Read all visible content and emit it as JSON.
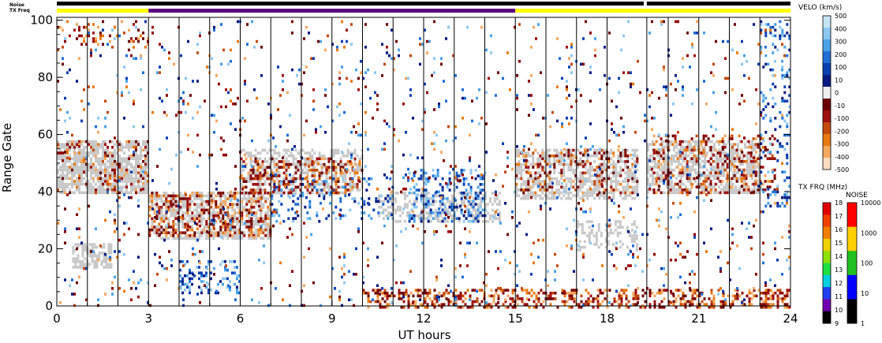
{
  "chart_data": {
    "type": "heatmap",
    "title": "",
    "xlabel": "UT hours",
    "ylabel": "Range Gate",
    "xlim": [
      0,
      24
    ],
    "ylim": [
      0,
      101
    ],
    "x_ticks": [
      0,
      3,
      6,
      9,
      12,
      15,
      18,
      21,
      24
    ],
    "y_ticks": [
      0,
      20,
      40,
      60,
      80,
      100
    ],
    "grid": "vertical lines at scan boundaries",
    "vertical_lines": [
      1,
      2,
      3,
      4,
      5,
      6,
      7,
      8,
      9,
      10,
      11,
      12,
      13,
      14,
      15,
      16,
      17,
      18,
      19.3,
      20,
      21,
      22,
      23
    ],
    "status_bars": {
      "noise_label": "Noise",
      "txfreq_label": "TX Freq",
      "noise_segments": [
        {
          "start": 0,
          "end": 19.2,
          "level": "black"
        },
        {
          "start": 19.3,
          "end": 24,
          "level": "black"
        }
      ],
      "txfreq_segments": [
        {
          "start": 0,
          "end": 3,
          "band": "yellow"
        },
        {
          "start": 3,
          "end": 15,
          "band": "purple"
        },
        {
          "start": 15,
          "end": 24,
          "band": "yellow"
        }
      ]
    },
    "regions": [
      {
        "kind": "ground",
        "x0": 0,
        "x1": 3,
        "y0": 40,
        "y1": 58,
        "density": 0.75
      },
      {
        "kind": "ground",
        "x0": 0.5,
        "x1": 1.8,
        "y0": 14,
        "y1": 22,
        "density": 0.6
      },
      {
        "kind": "ground",
        "x0": 3,
        "x1": 7,
        "y0": 24,
        "y1": 40,
        "density": 0.55
      },
      {
        "kind": "ground",
        "x0": 6,
        "x1": 10,
        "y0": 40,
        "y1": 55,
        "density": 0.5
      },
      {
        "kind": "ground",
        "x0": 10.5,
        "x1": 14.5,
        "y0": 30,
        "y1": 40,
        "density": 0.45
      },
      {
        "kind": "ground",
        "x0": 15,
        "x1": 19,
        "y0": 38,
        "y1": 55,
        "density": 0.6
      },
      {
        "kind": "ground",
        "x0": 19.3,
        "x1": 23,
        "y0": 40,
        "y1": 58,
        "density": 0.6
      },
      {
        "kind": "ground",
        "x0": 17,
        "x1": 19,
        "y0": 20,
        "y1": 30,
        "density": 0.3
      },
      {
        "kind": "neg",
        "x0": 3,
        "x1": 7,
        "y0": 25,
        "y1": 40,
        "density": 0.35
      },
      {
        "kind": "neg",
        "x0": 6,
        "x1": 10,
        "y0": 40,
        "y1": 52,
        "density": 0.3
      },
      {
        "kind": "neg",
        "x0": 0,
        "x1": 3,
        "y0": 40,
        "y1": 58,
        "density": 0.2
      },
      {
        "kind": "neg",
        "x0": 10,
        "x1": 24,
        "y0": 0,
        "y1": 6,
        "density": 0.4
      },
      {
        "kind": "neg",
        "x0": 19.5,
        "x1": 23.5,
        "y0": 40,
        "y1": 60,
        "density": 0.25
      },
      {
        "kind": "neg",
        "x0": 15,
        "x1": 19,
        "y0": 40,
        "y1": 55,
        "density": 0.2
      },
      {
        "kind": "neg",
        "x0": 0,
        "x1": 3,
        "y0": 90,
        "y1": 100,
        "density": 0.15
      },
      {
        "kind": "pos",
        "x0": 11.5,
        "x1": 14,
        "y0": 30,
        "y1": 48,
        "density": 0.3
      },
      {
        "kind": "pos",
        "x0": 4,
        "x1": 6,
        "y0": 5,
        "y1": 16,
        "density": 0.25
      },
      {
        "kind": "pos",
        "x0": 7,
        "x1": 11,
        "y0": 30,
        "y1": 45,
        "density": 0.15
      },
      {
        "kind": "pos",
        "x0": 23,
        "x1": 24,
        "y0": 35,
        "y1": 100,
        "density": 0.15
      },
      {
        "kind": "sparse",
        "x0": 0,
        "x1": 24,
        "y0": 0,
        "y1": 100,
        "density": 0.04
      }
    ],
    "velo_colorbar": {
      "title": "VELO (km/s)",
      "labels": [
        "500",
        "400",
        "300",
        "200",
        "100",
        "10",
        "0",
        "-10",
        "-100",
        "-200",
        "-300",
        "-400",
        "-500"
      ],
      "colors": [
        "#c6e4f7",
        "#8cc8f0",
        "#4aa3e8",
        "#1f6fd6",
        "#0a3fb0",
        "#061a80",
        "#eeeeee",
        "#6a0000",
        "#a01010",
        "#c44a10",
        "#e87a10",
        "#f5a860",
        "#fadcc0"
      ]
    },
    "txfrq_colorbar": {
      "title": "TX FRQ (MHz)",
      "labels": [
        "18",
        "17",
        "16",
        "15",
        "14",
        "13",
        "12",
        "11",
        "10",
        "9"
      ],
      "colors": [
        "#e00000",
        "#f04000",
        "#f08000",
        "#f0d000",
        "#90e000",
        "#20e040",
        "#00d0e0",
        "#2040f0",
        "#7000b0",
        "#000000"
      ]
    },
    "noise_colorbar": {
      "title": "NOISE",
      "labels": [
        "10000",
        "1000",
        "100",
        "10",
        "1"
      ],
      "colors": [
        "#ff0000",
        "#ffd000",
        "#20c020",
        "#0000ff",
        "#000000"
      ]
    }
  }
}
